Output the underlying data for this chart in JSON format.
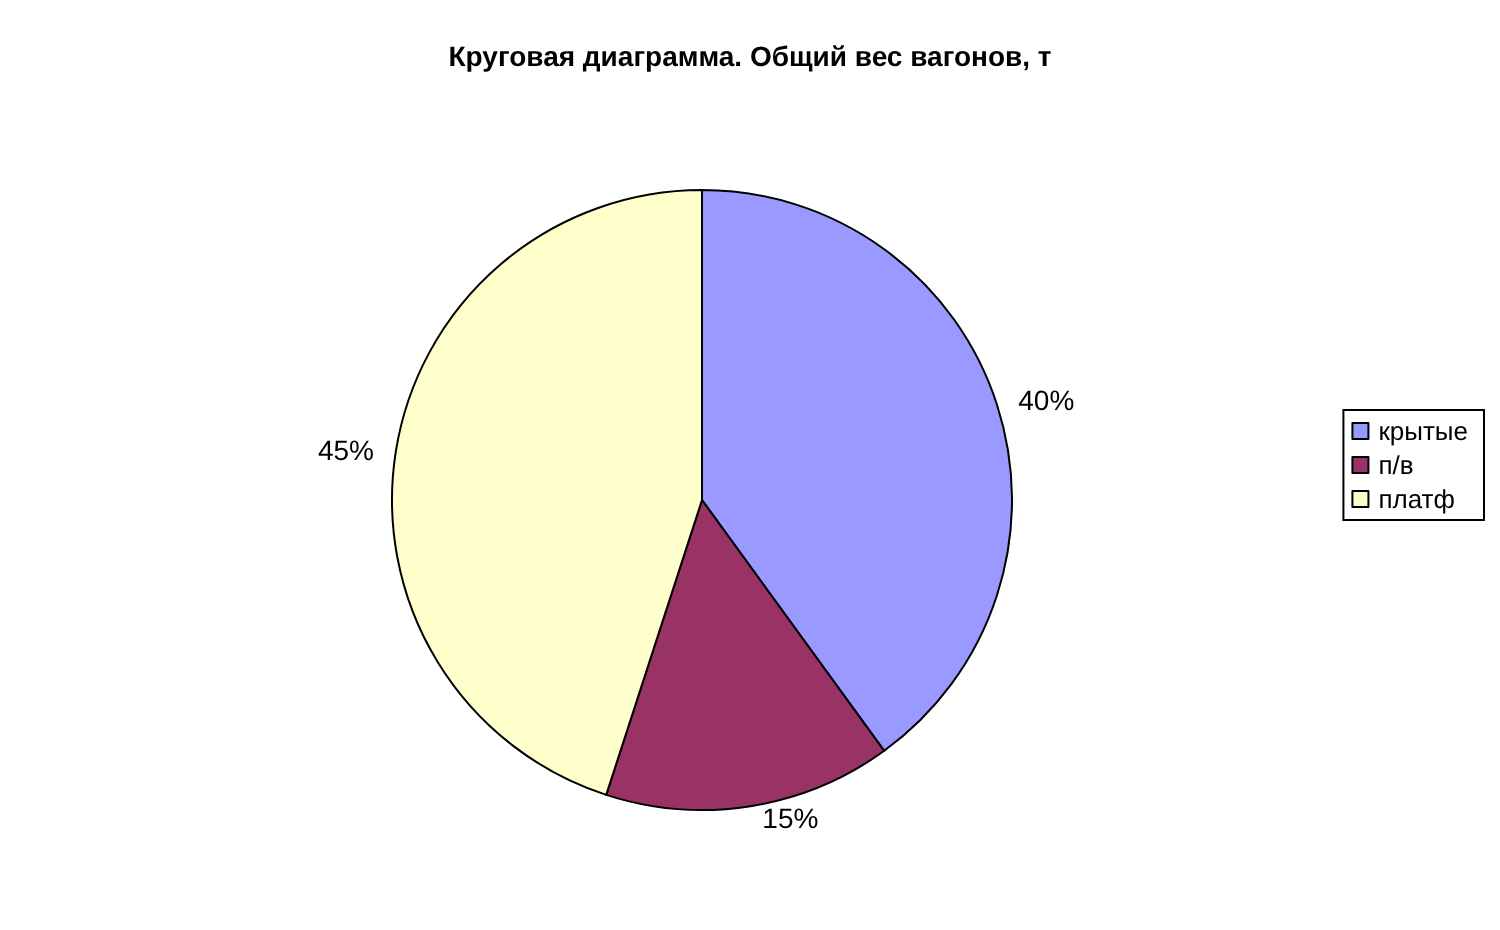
{
  "chart_data": {
    "type": "pie",
    "title": "Круговая диаграмма. Общий вес вагонов, т",
    "categories": [
      "крытые",
      "п/в",
      "платф"
    ],
    "values": [
      40,
      15,
      45
    ],
    "colors": [
      "#9999ff",
      "#993366",
      "#ffffcc"
    ],
    "value_labels": [
      "40%",
      "15%",
      "45%"
    ],
    "legend": "right"
  }
}
